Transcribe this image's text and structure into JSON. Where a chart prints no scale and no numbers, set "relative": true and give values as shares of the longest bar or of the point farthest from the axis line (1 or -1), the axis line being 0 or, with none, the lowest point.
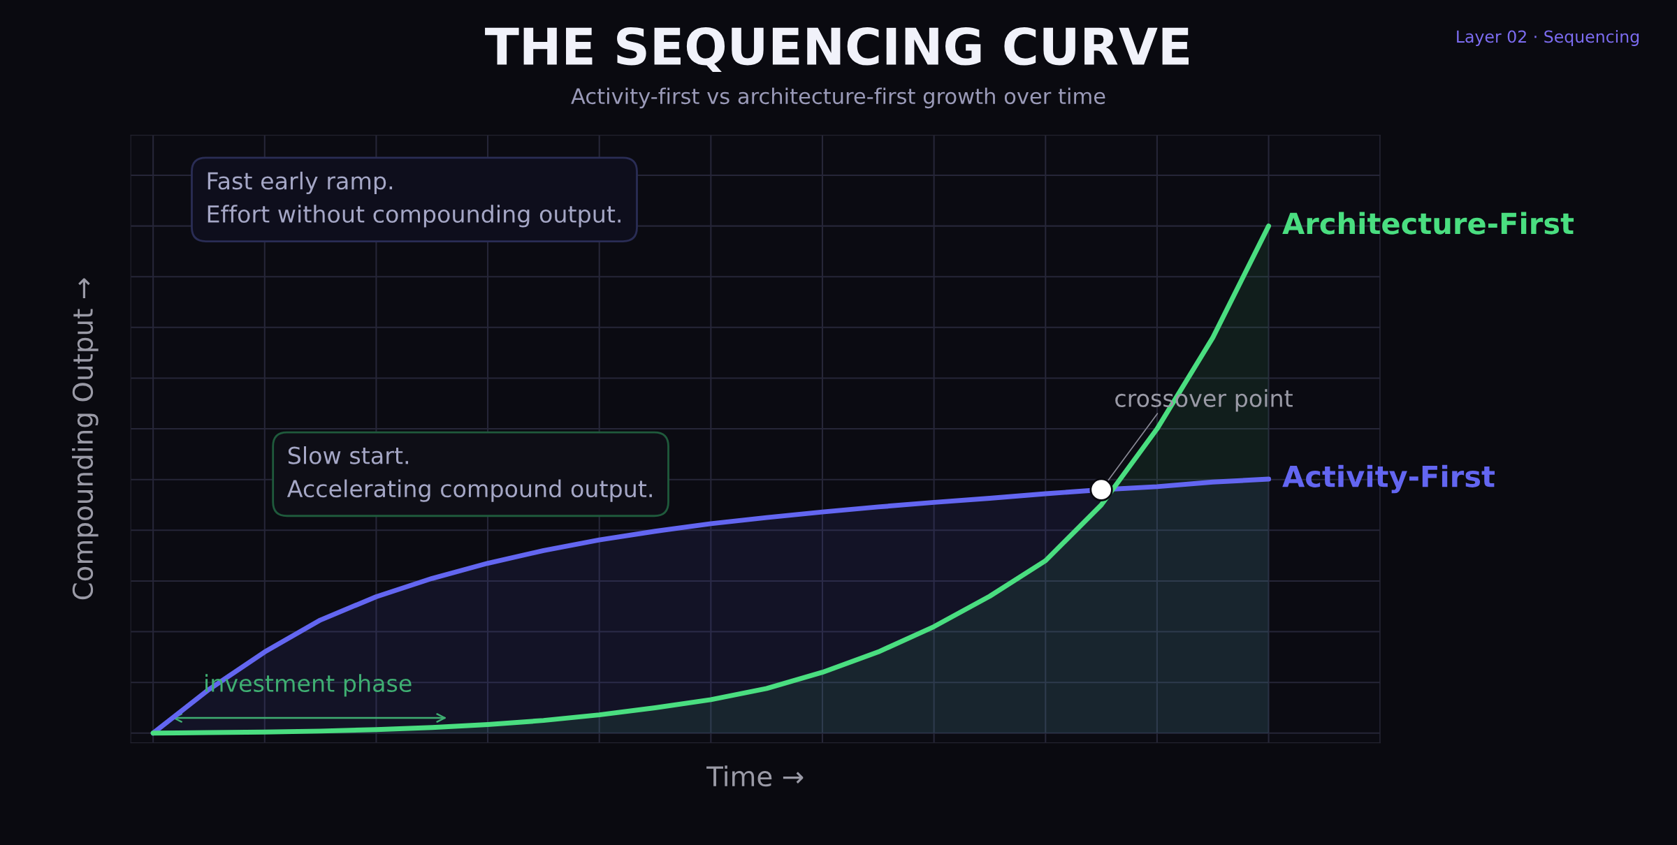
{
  "chart_data": {
    "type": "area",
    "title": "THE SEQUENCING CURVE",
    "subtitle": "Activity-first vs architecture-first growth over time",
    "xlabel": "Time →",
    "ylabel": "Compounding Output →",
    "relative": true,
    "grid": true,
    "legend": false,
    "categories": [
      null,
      null,
      null,
      null,
      null,
      null,
      null,
      null,
      null,
      null,
      null,
      null,
      null,
      null,
      null,
      null,
      null,
      null,
      null,
      null,
      null
    ],
    "series": [
      {
        "name": "Activity-First",
        "color": "#6366f1",
        "values": [
          0,
          0.086,
          0.16,
          0.223,
          0.269,
          0.305,
          0.335,
          0.36,
          0.381,
          0.398,
          0.413,
          0.425,
          0.436,
          0.446,
          0.455,
          0.463,
          0.472,
          0.48,
          0.486,
          0.495,
          0.501
        ]
      },
      {
        "name": "Architecture-First",
        "color": "#4ade80",
        "values": [
          0,
          0.001,
          0.002,
          0.004,
          0.007,
          0.011,
          0.017,
          0.025,
          0.036,
          0.05,
          0.066,
          0.088,
          0.12,
          0.16,
          0.21,
          0.27,
          0.34,
          0.45,
          0.6,
          0.78,
          1
        ]
      }
    ],
    "annotations": [
      "Layer 02 · Sequencing",
      "Fast early ramp.\nEffort without compounding output.",
      "Slow start.\nAccelerating compound output.",
      "crossover point",
      "investment phase"
    ]
  }
}
